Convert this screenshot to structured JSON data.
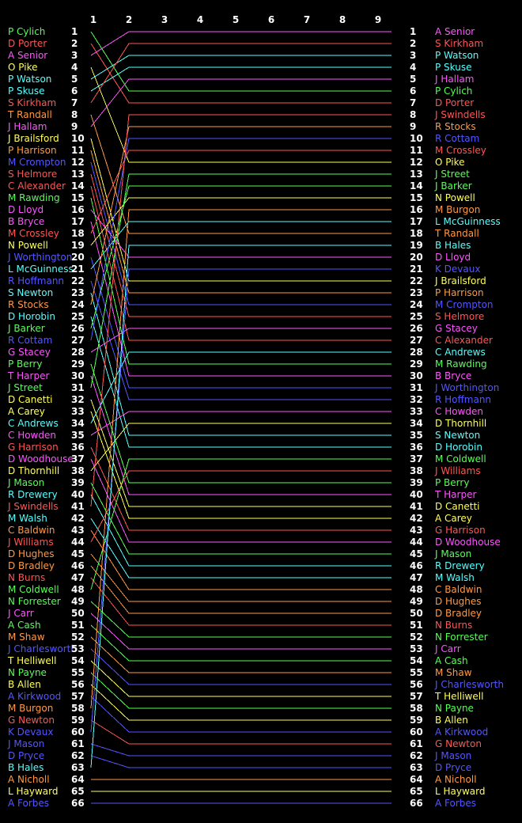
{
  "chart_data": {
    "type": "line",
    "x": [
      1,
      2,
      3,
      4,
      5,
      6,
      7,
      8,
      9
    ],
    "series": [
      {
        "name": "P Cylich",
        "color": "#55ff55",
        "values": [
          1,
          6,
          6,
          6,
          6,
          6,
          6,
          6,
          6
        ]
      },
      {
        "name": "D Porter",
        "color": "#ff5555",
        "values": [
          2,
          7,
          7,
          7,
          7,
          7,
          7,
          7,
          7
        ]
      },
      {
        "name": "A Senior",
        "color": "#ff55ff",
        "values": [
          3,
          1,
          1,
          1,
          1,
          1,
          1,
          1,
          1
        ]
      },
      {
        "name": "O Pike",
        "color": "#ffff55",
        "values": [
          4,
          12,
          12,
          12,
          12,
          12,
          12,
          12,
          12
        ]
      },
      {
        "name": "P Watson",
        "color": "#55ffff",
        "values": [
          5,
          3,
          3,
          3,
          3,
          3,
          3,
          3,
          3
        ]
      },
      {
        "name": "P Skuse",
        "color": "#55ffff",
        "values": [
          6,
          4,
          4,
          4,
          4,
          4,
          4,
          4,
          4
        ]
      },
      {
        "name": "S Kirkham",
        "color": "#ff5555",
        "values": [
          7,
          2,
          2,
          2,
          2,
          2,
          2,
          2,
          2
        ]
      },
      {
        "name": "T Randall",
        "color": "#ff9944",
        "values": [
          8,
          18,
          18,
          18,
          18,
          18,
          18,
          18,
          18
        ]
      },
      {
        "name": "J Hallam",
        "color": "#ff55ff",
        "values": [
          9,
          5,
          5,
          5,
          5,
          5,
          5,
          5,
          5
        ]
      },
      {
        "name": "J Brailsford",
        "color": "#ffff55",
        "values": [
          10,
          22,
          22,
          22,
          22,
          22,
          22,
          22,
          22
        ]
      },
      {
        "name": "P Harrison",
        "color": "#ff9944",
        "values": [
          11,
          23,
          23,
          23,
          23,
          23,
          23,
          23,
          23
        ]
      },
      {
        "name": "M Crompton",
        "color": "#5555ff",
        "values": [
          12,
          24,
          24,
          24,
          24,
          24,
          24,
          24,
          24
        ]
      },
      {
        "name": "S Helmore",
        "color": "#ff5555",
        "values": [
          13,
          25,
          25,
          25,
          25,
          25,
          25,
          25,
          25
        ]
      },
      {
        "name": "C Alexander",
        "color": "#ff5555",
        "values": [
          14,
          27,
          27,
          27,
          27,
          27,
          27,
          27,
          27
        ]
      },
      {
        "name": "M Rawding",
        "color": "#55ff55",
        "values": [
          15,
          29,
          29,
          29,
          29,
          29,
          29,
          29,
          29
        ]
      },
      {
        "name": "D Lloyd",
        "color": "#ff55ff",
        "values": [
          16,
          20,
          20,
          20,
          20,
          20,
          20,
          20,
          20
        ]
      },
      {
        "name": "B Bryce",
        "color": "#ff55ff",
        "values": [
          17,
          30,
          30,
          30,
          30,
          30,
          30,
          30,
          30
        ]
      },
      {
        "name": "M Crossley",
        "color": "#ff5555",
        "values": [
          18,
          11,
          11,
          11,
          11,
          11,
          11,
          11,
          11
        ]
      },
      {
        "name": "N Powell",
        "color": "#ffff55",
        "values": [
          19,
          15,
          15,
          15,
          15,
          15,
          15,
          15,
          15
        ]
      },
      {
        "name": "J Worthington",
        "color": "#5555ff",
        "values": [
          20,
          31,
          31,
          31,
          31,
          31,
          31,
          31,
          31
        ]
      },
      {
        "name": "L McGuinness",
        "color": "#55ffff",
        "values": [
          21,
          17,
          17,
          17,
          17,
          17,
          17,
          17,
          17
        ]
      },
      {
        "name": "R Hoffmann",
        "color": "#5555ff",
        "values": [
          22,
          32,
          32,
          32,
          32,
          32,
          32,
          32,
          32
        ]
      },
      {
        "name": "S Newton",
        "color": "#55ffff",
        "values": [
          23,
          35,
          35,
          35,
          35,
          35,
          35,
          35,
          35
        ]
      },
      {
        "name": "R Stocks",
        "color": "#ff9944",
        "values": [
          24,
          9,
          9,
          9,
          9,
          9,
          9,
          9,
          9
        ]
      },
      {
        "name": "D Horobin",
        "color": "#55ffff",
        "values": [
          25,
          36,
          36,
          36,
          36,
          36,
          36,
          36,
          36
        ]
      },
      {
        "name": "J Barker",
        "color": "#55ff55",
        "values": [
          26,
          14,
          14,
          14,
          14,
          14,
          14,
          14,
          14
        ]
      },
      {
        "name": "R Cottam",
        "color": "#5555ff",
        "values": [
          27,
          10,
          10,
          10,
          10,
          10,
          10,
          10,
          10
        ]
      },
      {
        "name": "G Stacey",
        "color": "#ff55ff",
        "values": [
          28,
          26,
          26,
          26,
          26,
          26,
          26,
          26,
          26
        ]
      },
      {
        "name": "P Berry",
        "color": "#55ff55",
        "values": [
          29,
          39,
          39,
          39,
          39,
          39,
          39,
          39,
          39
        ]
      },
      {
        "name": "T Harper",
        "color": "#ff55ff",
        "values": [
          30,
          40,
          40,
          40,
          40,
          40,
          40,
          40,
          40
        ]
      },
      {
        "name": "J Street",
        "color": "#55ff55",
        "values": [
          31,
          13,
          13,
          13,
          13,
          13,
          13,
          13,
          13
        ]
      },
      {
        "name": "D Canetti",
        "color": "#ffff55",
        "values": [
          32,
          41,
          41,
          41,
          41,
          41,
          41,
          41,
          41
        ]
      },
      {
        "name": "A Carey",
        "color": "#ffff55",
        "values": [
          33,
          42,
          42,
          42,
          42,
          42,
          42,
          42,
          42
        ]
      },
      {
        "name": "C Andrews",
        "color": "#55ffff",
        "values": [
          34,
          28,
          28,
          28,
          28,
          28,
          28,
          28,
          28
        ]
      },
      {
        "name": "C Howden",
        "color": "#ff55ff",
        "values": [
          35,
          33,
          33,
          33,
          33,
          33,
          33,
          33,
          33
        ]
      },
      {
        "name": "G Harrison",
        "color": "#ff5555",
        "values": [
          36,
          43,
          43,
          43,
          43,
          43,
          43,
          43,
          43
        ]
      },
      {
        "name": "D Woodhouse",
        "color": "#ff55ff",
        "values": [
          37,
          44,
          44,
          44,
          44,
          44,
          44,
          44,
          44
        ]
      },
      {
        "name": "D Thornhill",
        "color": "#ffff55",
        "values": [
          38,
          34,
          34,
          34,
          34,
          34,
          34,
          34,
          34
        ]
      },
      {
        "name": "J Mason",
        "color": "#55ff55",
        "values": [
          39,
          45,
          45,
          45,
          45,
          45,
          45,
          45,
          45
        ]
      },
      {
        "name": "R Drewery",
        "color": "#55ffff",
        "values": [
          40,
          46,
          46,
          46,
          46,
          46,
          46,
          46,
          46
        ]
      },
      {
        "name": "J Swindells",
        "color": "#ff5555",
        "values": [
          41,
          8,
          8,
          8,
          8,
          8,
          8,
          8,
          8
        ]
      },
      {
        "name": "M Walsh",
        "color": "#55ffff",
        "values": [
          42,
          47,
          47,
          47,
          47,
          47,
          47,
          47,
          47
        ]
      },
      {
        "name": "C Baldwin",
        "color": "#ff9944",
        "values": [
          43,
          48,
          48,
          48,
          48,
          48,
          48,
          48,
          48
        ]
      },
      {
        "name": "J Williams",
        "color": "#ff5555",
        "values": [
          44,
          38,
          38,
          38,
          38,
          38,
          38,
          38,
          38
        ]
      },
      {
        "name": "D Hughes",
        "color": "#ff9944",
        "values": [
          45,
          49,
          49,
          49,
          49,
          49,
          49,
          49,
          49
        ]
      },
      {
        "name": "D Bradley",
        "color": "#ff9944",
        "values": [
          46,
          50,
          50,
          50,
          50,
          50,
          50,
          50,
          50
        ]
      },
      {
        "name": "N Burns",
        "color": "#ff5555",
        "values": [
          47,
          51,
          51,
          51,
          51,
          51,
          51,
          51,
          51
        ]
      },
      {
        "name": "M Coldwell",
        "color": "#55ff55",
        "values": [
          48,
          37,
          37,
          37,
          37,
          37,
          37,
          37,
          37
        ]
      },
      {
        "name": "N Forrester",
        "color": "#55ff55",
        "values": [
          49,
          52,
          52,
          52,
          52,
          52,
          52,
          52,
          52
        ]
      },
      {
        "name": "J Carr",
        "color": "#ff55ff",
        "values": [
          50,
          53,
          53,
          53,
          53,
          53,
          53,
          53,
          53
        ]
      },
      {
        "name": "A Cash",
        "color": "#55ff55",
        "values": [
          51,
          54,
          54,
          54,
          54,
          54,
          54,
          54,
          54
        ]
      },
      {
        "name": "M Shaw",
        "color": "#ff9944",
        "values": [
          52,
          55,
          55,
          55,
          55,
          55,
          55,
          55,
          55
        ]
      },
      {
        "name": "J Charlesworth",
        "color": "#5555ff",
        "values": [
          53,
          56,
          56,
          56,
          56,
          56,
          56,
          56,
          56
        ]
      },
      {
        "name": "T Helliwell",
        "color": "#ffff55",
        "values": [
          54,
          57,
          57,
          57,
          57,
          57,
          57,
          57,
          57
        ]
      },
      {
        "name": "N Payne",
        "color": "#55ff55",
        "values": [
          55,
          58,
          58,
          58,
          58,
          58,
          58,
          58,
          58
        ]
      },
      {
        "name": "B Allen",
        "color": "#ffff55",
        "values": [
          56,
          59,
          59,
          59,
          59,
          59,
          59,
          59,
          59
        ]
      },
      {
        "name": "A Kirkwood",
        "color": "#5555ff",
        "values": [
          57,
          60,
          60,
          60,
          60,
          60,
          60,
          60,
          60
        ]
      },
      {
        "name": "M Burgon",
        "color": "#ff9944",
        "values": [
          58,
          16,
          16,
          16,
          16,
          16,
          16,
          16,
          16
        ]
      },
      {
        "name": "G Newton",
        "color": "#ff5555",
        "values": [
          59,
          61,
          61,
          61,
          61,
          61,
          61,
          61,
          61
        ]
      },
      {
        "name": "K Devaux",
        "color": "#5555ff",
        "values": [
          60,
          21,
          21,
          21,
          21,
          21,
          21,
          21,
          21
        ]
      },
      {
        "name": "J Mason",
        "color": "#5555ff",
        "values": [
          61,
          62,
          62,
          62,
          62,
          62,
          62,
          62,
          62
        ]
      },
      {
        "name": "D Pryce",
        "color": "#5555ff",
        "values": [
          62,
          63,
          63,
          63,
          63,
          63,
          63,
          63,
          63
        ]
      },
      {
        "name": "B Hales",
        "color": "#55ffff",
        "values": [
          63,
          19,
          19,
          19,
          19,
          19,
          19,
          19,
          19
        ]
      },
      {
        "name": "A Nicholl",
        "color": "#ff9944",
        "values": [
          64,
          64,
          64,
          64,
          64,
          64,
          64,
          64,
          64
        ]
      },
      {
        "name": "L Hayward",
        "color": "#ffff55",
        "values": [
          65,
          65,
          65,
          65,
          65,
          65,
          65,
          65,
          65
        ]
      },
      {
        "name": "A Forbes",
        "color": "#5555ff",
        "values": [
          66,
          66,
          66,
          66,
          66,
          66,
          66,
          66,
          66
        ]
      }
    ]
  }
}
